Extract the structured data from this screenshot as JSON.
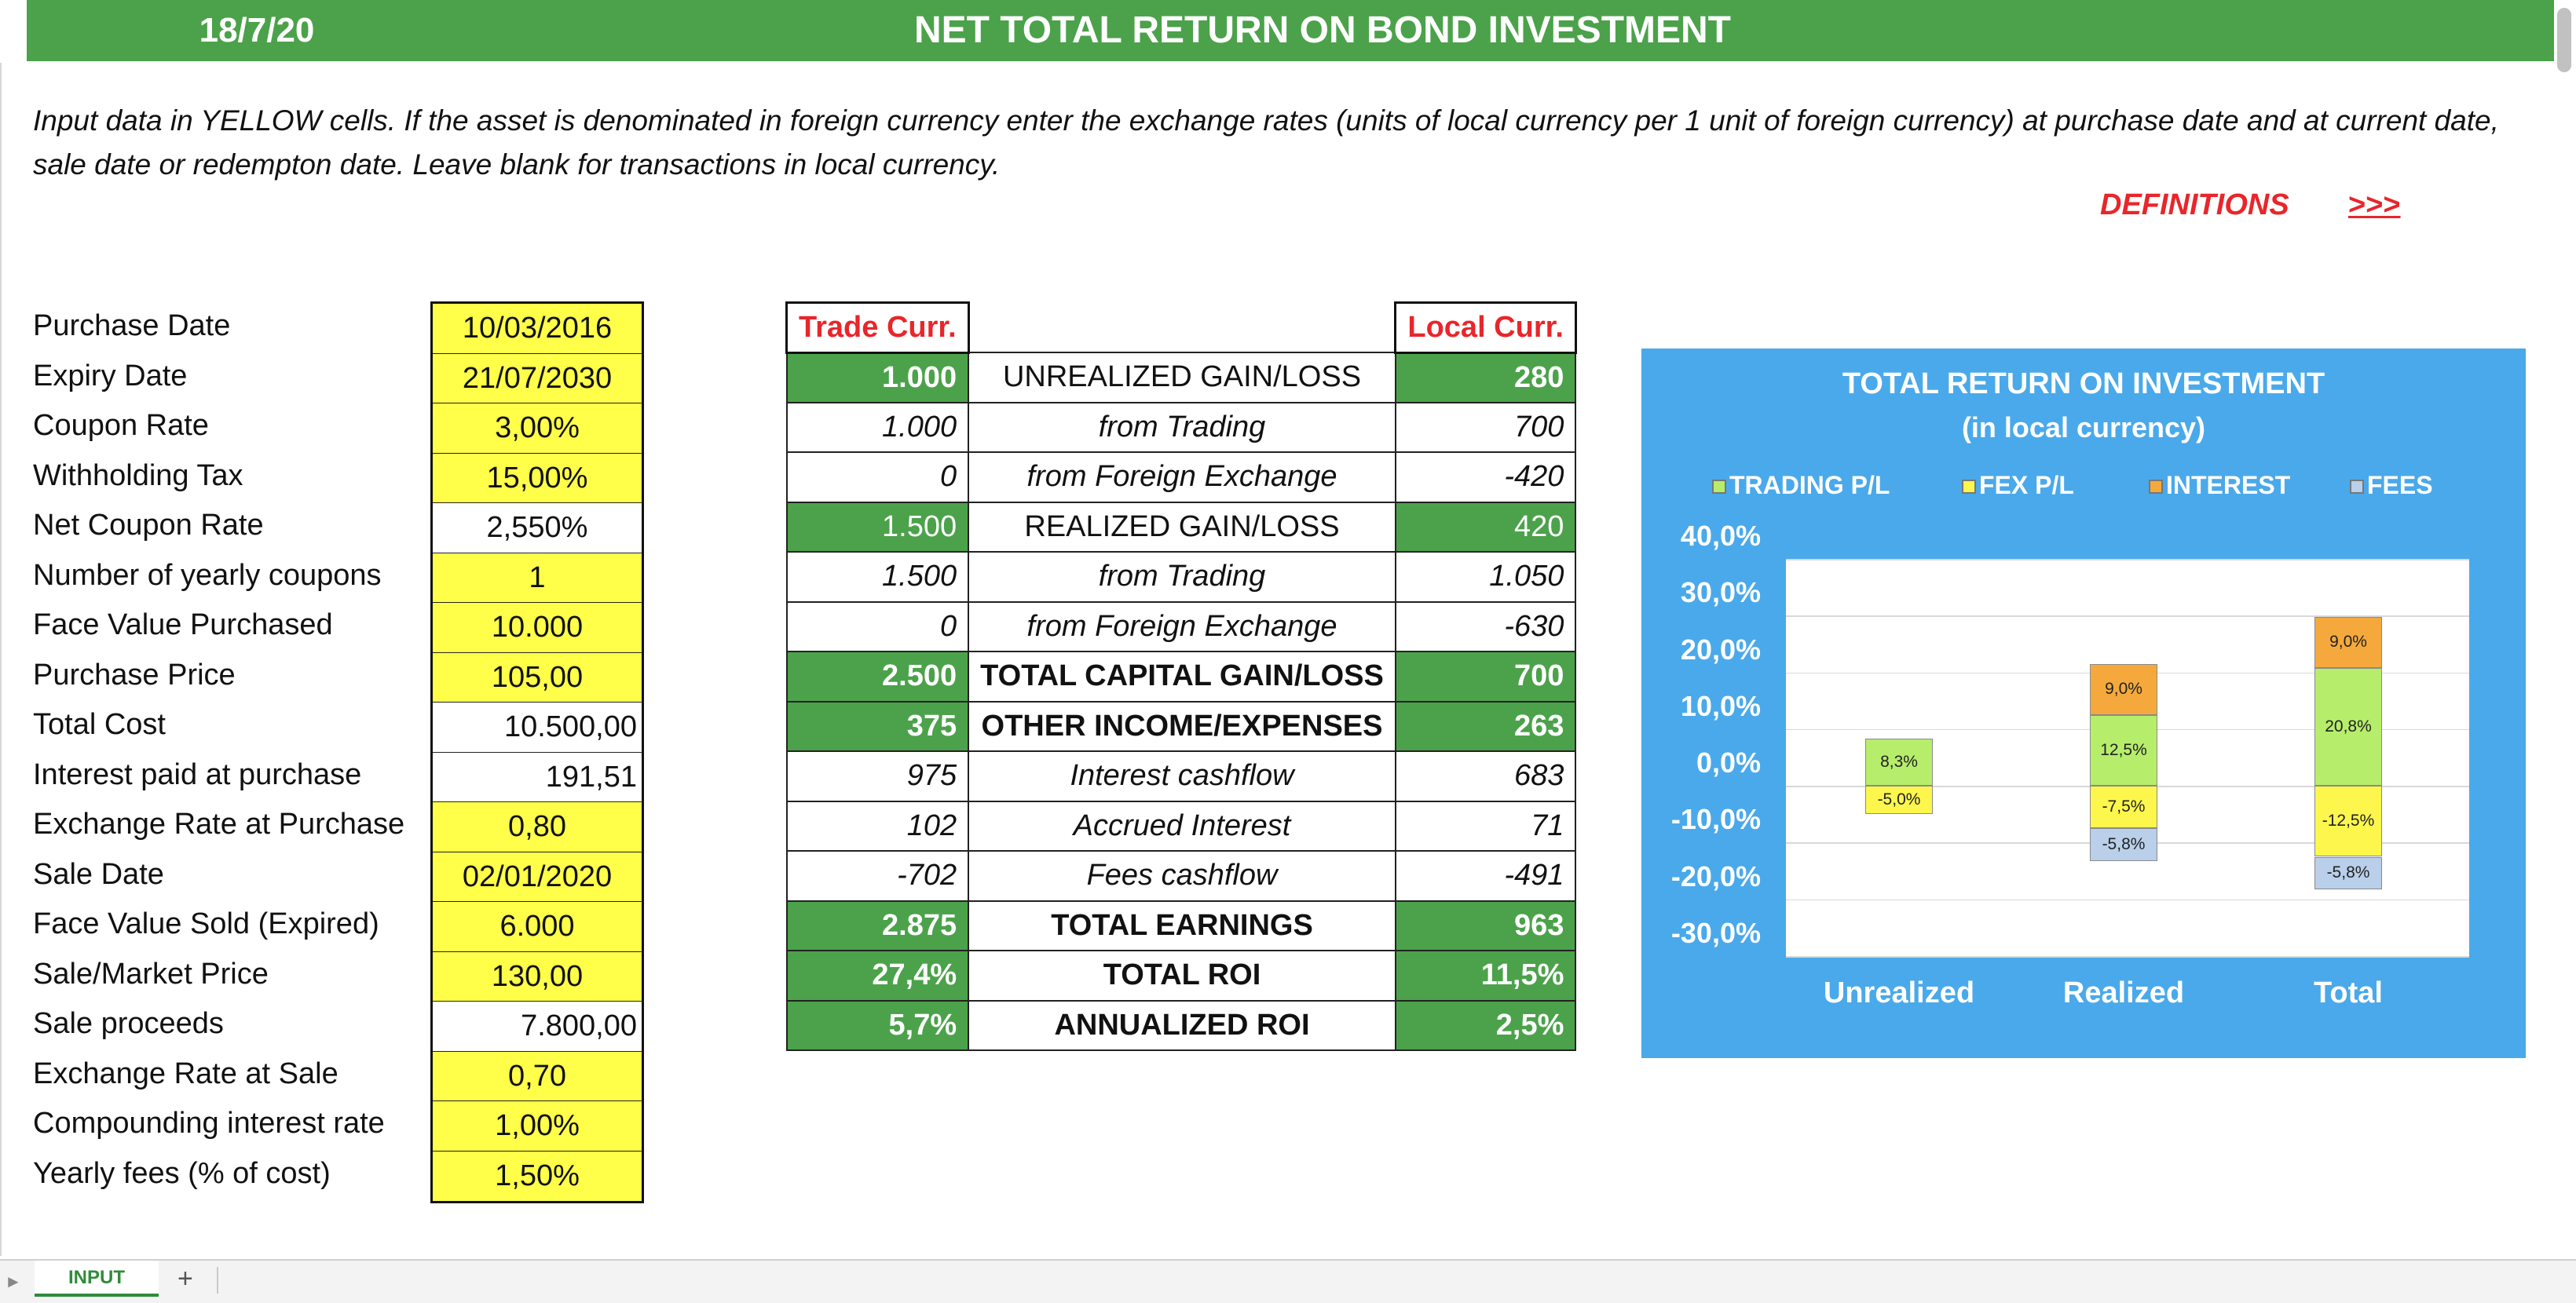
{
  "header": {
    "date": "18/7/20",
    "title": "NET TOTAL RETURN ON BOND INVESTMENT"
  },
  "instructions": "Input data in YELLOW cells. If the asset is denominated in foreign currency enter the exchange rates (units of local currency per 1 unit of foreign currency) at purchase date and at current date, sale date or redempton date. Leave blank for transactions in local currency.",
  "definitions": {
    "label": "DEFINITIONS",
    "link": ">>>"
  },
  "inputs": [
    {
      "label": "Purchase Date",
      "value": "10/03/2016"
    },
    {
      "label": "Expiry Date",
      "value": "21/07/2030"
    },
    {
      "label": "Coupon Rate",
      "value": "3,00%"
    },
    {
      "label": "Withholding Tax",
      "value": "15,00%"
    },
    {
      "label": "Net Coupon Rate",
      "value": "2,550%"
    },
    {
      "label": "Number of yearly coupons",
      "value": "1"
    },
    {
      "label": "Face Value Purchased",
      "value": "10.000"
    },
    {
      "label": "Purchase Price",
      "value": "105,00"
    },
    {
      "label": "Total Cost",
      "value": "10.500,00"
    },
    {
      "label": "Interest paid at purchase",
      "value": "191,51"
    },
    {
      "label": "Exchange Rate at Purchase",
      "value": "0,80"
    },
    {
      "label": "Sale Date",
      "value": "02/01/2020"
    },
    {
      "label": "Face Value Sold (Expired)",
      "value": "6.000"
    },
    {
      "label": "Sale/Market Price",
      "value": "130,00"
    },
    {
      "label": "Sale proceeds",
      "value": "7.800,00"
    },
    {
      "label": "Exchange Rate at Sale",
      "value": "0,70"
    },
    {
      "label": "Compounding interest rate",
      "value": "1,00%"
    },
    {
      "label": "Yearly fees (% of cost)",
      "value": "1,50%"
    }
  ],
  "results": {
    "header_trade": "Trade Curr.",
    "header_local": "Local Curr.",
    "rows": [
      {
        "trade": "1.000",
        "label": "UNREALIZED GAIN/LOSS",
        "local": "280"
      },
      {
        "trade": "1.000",
        "label": "from Trading",
        "local": "700"
      },
      {
        "trade": "0",
        "label": "from Foreign Exchange",
        "local": "-420"
      },
      {
        "trade": "1.500",
        "label": "REALIZED GAIN/LOSS",
        "local": "420"
      },
      {
        "trade": "1.500",
        "label": "from Trading",
        "local": "1.050"
      },
      {
        "trade": "0",
        "label": "from Foreign Exchange",
        "local": "-630"
      },
      {
        "trade": "2.500",
        "label": "TOTAL CAPITAL GAIN/LOSS",
        "local": "700"
      },
      {
        "trade": "375",
        "label": "OTHER INCOME/EXPENSES",
        "local": "263"
      },
      {
        "trade": "975",
        "label": "Interest cashflow",
        "local": "683"
      },
      {
        "trade": "102",
        "label": "Accrued Interest",
        "local": "71"
      },
      {
        "trade": "-702",
        "label": "Fees cashflow",
        "local": "-491"
      },
      {
        "trade": "2.875",
        "label": "TOTAL EARNINGS",
        "local": "963"
      },
      {
        "trade": "27,4%",
        "label": "TOTAL ROI",
        "local": "11,5%"
      },
      {
        "trade": "5,7%",
        "label": "ANNUALIZED ROI",
        "local": "2,5%"
      }
    ]
  },
  "chart_data": {
    "type": "bar",
    "stacked": true,
    "title": "TOTAL RETURN ON INVESTMENT",
    "subtitle": "(in local currency)",
    "categories": [
      "Unrealized",
      "Realized",
      "Total"
    ],
    "ylim": [
      -30,
      40
    ],
    "yticks": [
      "40,0%",
      "30,0%",
      "20,0%",
      "10,0%",
      "0,0%",
      "-10,0%",
      "-20,0%",
      "-30,0%"
    ],
    "legend_position": "top",
    "grid": true,
    "series": [
      {
        "name": "TRADING P/L",
        "color": "#b6ee6c",
        "values": [
          8.3,
          12.5,
          20.8
        ],
        "labels": [
          "8,3%",
          "12,5%",
          "20,8%"
        ]
      },
      {
        "name": "FEX P/L",
        "color": "#fdf64d",
        "values": [
          -5.0,
          -7.5,
          -12.5
        ],
        "labels": [
          "-5,0%",
          "-7,5%",
          "-12,5%"
        ]
      },
      {
        "name": "INTEREST",
        "color": "#f5a93d",
        "values": [
          0,
          9.0,
          9.0
        ],
        "labels": [
          "",
          "9,0%",
          "9,0%"
        ]
      },
      {
        "name": "FEES",
        "color": "#b9cfea",
        "values": [
          0,
          -5.8,
          -5.8
        ],
        "labels": [
          "",
          "-5,8%",
          "-5,8%"
        ]
      }
    ]
  },
  "sheet": {
    "tab": "INPUT",
    "add": "+"
  }
}
